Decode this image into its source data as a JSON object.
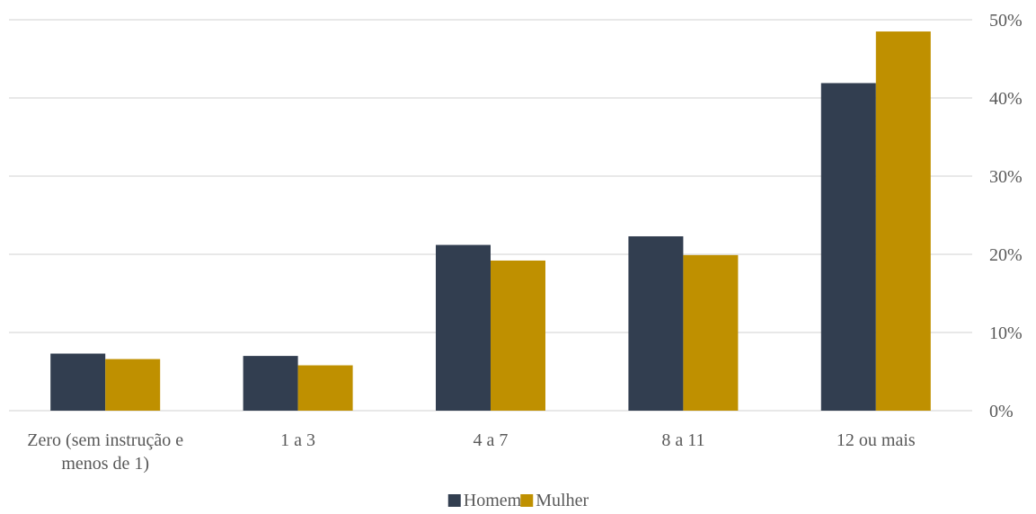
{
  "chart_data": {
    "type": "bar",
    "categories": [
      [
        "Zero (sem instrução e",
        "menos de 1)"
      ],
      [
        "1 a 3"
      ],
      [
        "4 a 7"
      ],
      [
        "8 a 11"
      ],
      [
        "12 ou mais"
      ]
    ],
    "series": [
      {
        "name": "Homem",
        "color": "#323e50",
        "values": [
          7.3,
          7.0,
          21.2,
          22.3,
          41.9
        ]
      },
      {
        "name": "Mulher",
        "color": "#bf9000",
        "values": [
          6.6,
          5.8,
          19.2,
          19.9,
          48.5
        ]
      }
    ],
    "y_ticks": [
      "0%",
      "10%",
      "20%",
      "30%",
      "40%",
      "50%"
    ],
    "ylim": [
      0,
      50
    ],
    "y_axis_position": "right",
    "grid": true,
    "legend_position": "bottom",
    "title": "",
    "xlabel": "",
    "ylabel": ""
  }
}
